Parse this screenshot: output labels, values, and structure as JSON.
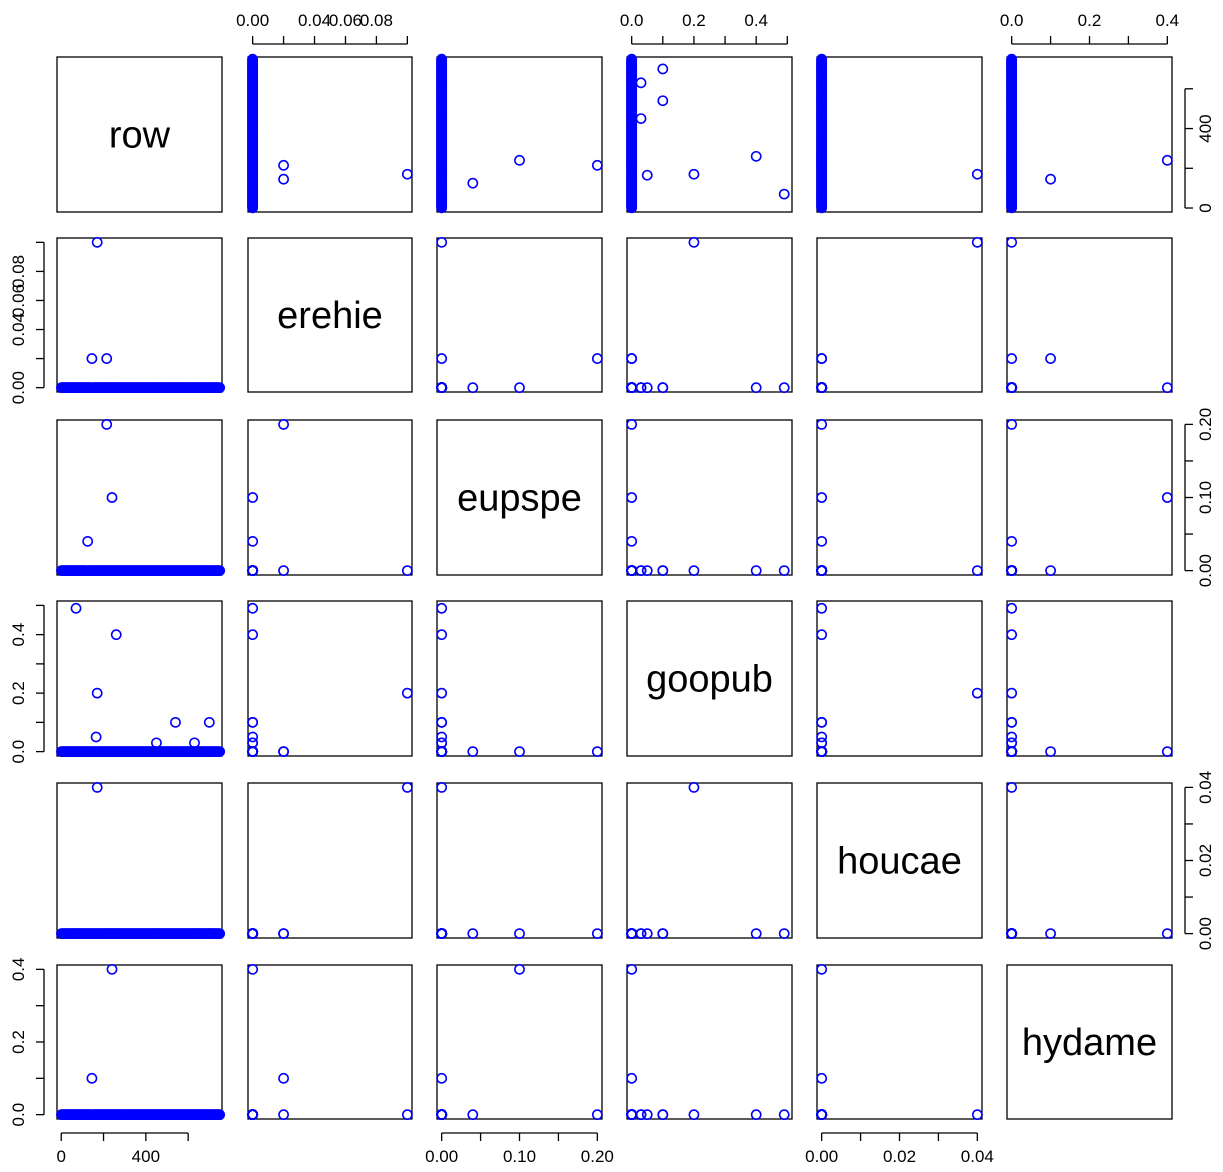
{
  "chart_data": {
    "type": "scatter",
    "kind": "pairs",
    "point_color": "#0000FF",
    "variables": [
      {
        "name": "row",
        "range": [
          -20,
          760
        ],
        "ticks": [
          0,
          200,
          400,
          600
        ],
        "tick_labels": [
          "0",
          "",
          "400",
          ""
        ],
        "tick_labels_shown": [
          "0",
          "400"
        ]
      },
      {
        "name": "erehie",
        "range": [
          -0.003,
          0.103
        ],
        "ticks": [
          0.0,
          0.02,
          0.04,
          0.06,
          0.08,
          0.1
        ],
        "tick_labels": [
          "0.00",
          "",
          "0.04",
          "0.06",
          "0.08",
          ""
        ],
        "tick_labels_shown": [
          "0.00",
          "0.04",
          "0.08",
          "0.00",
          "0.06"
        ]
      },
      {
        "name": "eupspe",
        "range": [
          -0.006,
          0.206
        ],
        "ticks": [
          0.0,
          0.05,
          0.1,
          0.15,
          0.2
        ],
        "tick_labels": [
          "0.00",
          "",
          "0.10",
          "",
          "0.20"
        ]
      },
      {
        "name": "goopub",
        "range": [
          -0.015,
          0.515
        ],
        "ticks": [
          0.0,
          0.1,
          0.2,
          0.3,
          0.4,
          0.5
        ],
        "tick_labels": [
          "0.0",
          "",
          "0.2",
          "",
          "0.4",
          ""
        ]
      },
      {
        "name": "houcae",
        "range": [
          -0.0012,
          0.0412
        ],
        "ticks": [
          0.0,
          0.01,
          0.02,
          0.03,
          0.04
        ],
        "tick_labels": [
          "0.00",
          "",
          "0.02",
          "",
          "0.04"
        ]
      },
      {
        "name": "hydame",
        "range": [
          -0.012,
          0.412
        ],
        "ticks": [
          0.0,
          0.1,
          0.2,
          0.3,
          0.4
        ],
        "tick_labels": [
          "0.0",
          "",
          "0.2",
          "",
          "0.4"
        ]
      }
    ],
    "background_points": {
      "description": "all other rows are zero in every species column",
      "row_range": [
        1,
        750
      ],
      "values": {
        "erehie": 0,
        "eupspe": 0,
        "goopub": 0,
        "houcae": 0,
        "hydame": 0
      }
    },
    "points": [
      {
        "row": 70,
        "erehie": 0,
        "eupspe": 0,
        "goopub": 0.49,
        "houcae": 0,
        "hydame": 0
      },
      {
        "row": 125,
        "erehie": 0,
        "eupspe": 0.04,
        "goopub": 0,
        "houcae": 0,
        "hydame": 0
      },
      {
        "row": 145,
        "erehie": 0.02,
        "eupspe": 0,
        "goopub": 0,
        "houcae": 0,
        "hydame": 0.1
      },
      {
        "row": 165,
        "erehie": 0,
        "eupspe": 0,
        "goopub": 0.05,
        "houcae": 0,
        "hydame": 0
      },
      {
        "row": 170,
        "erehie": 0.1,
        "eupspe": 0,
        "goopub": 0.2,
        "houcae": 0.04,
        "hydame": 0
      },
      {
        "row": 215,
        "erehie": 0.02,
        "eupspe": 0.2,
        "goopub": 0,
        "houcae": 0,
        "hydame": 0
      },
      {
        "row": 240,
        "erehie": 0,
        "eupspe": 0.1,
        "goopub": 0,
        "houcae": 0,
        "hydame": 0.4
      },
      {
        "row": 260,
        "erehie": 0,
        "eupspe": 0,
        "goopub": 0.4,
        "houcae": 0,
        "hydame": 0
      },
      {
        "row": 450,
        "erehie": 0,
        "eupspe": 0,
        "goopub": 0.03,
        "houcae": 0,
        "hydame": 0
      },
      {
        "row": 540,
        "erehie": 0,
        "eupspe": 0,
        "goopub": 0.1,
        "houcae": 0,
        "hydame": 0
      },
      {
        "row": 630,
        "erehie": 0,
        "eupspe": 0,
        "goopub": 0.03,
        "houcae": 0,
        "hydame": 0
      },
      {
        "row": 700,
        "erehie": 0,
        "eupspe": 0,
        "goopub": 0.1,
        "houcae": 0,
        "hydame": 0
      }
    ]
  }
}
